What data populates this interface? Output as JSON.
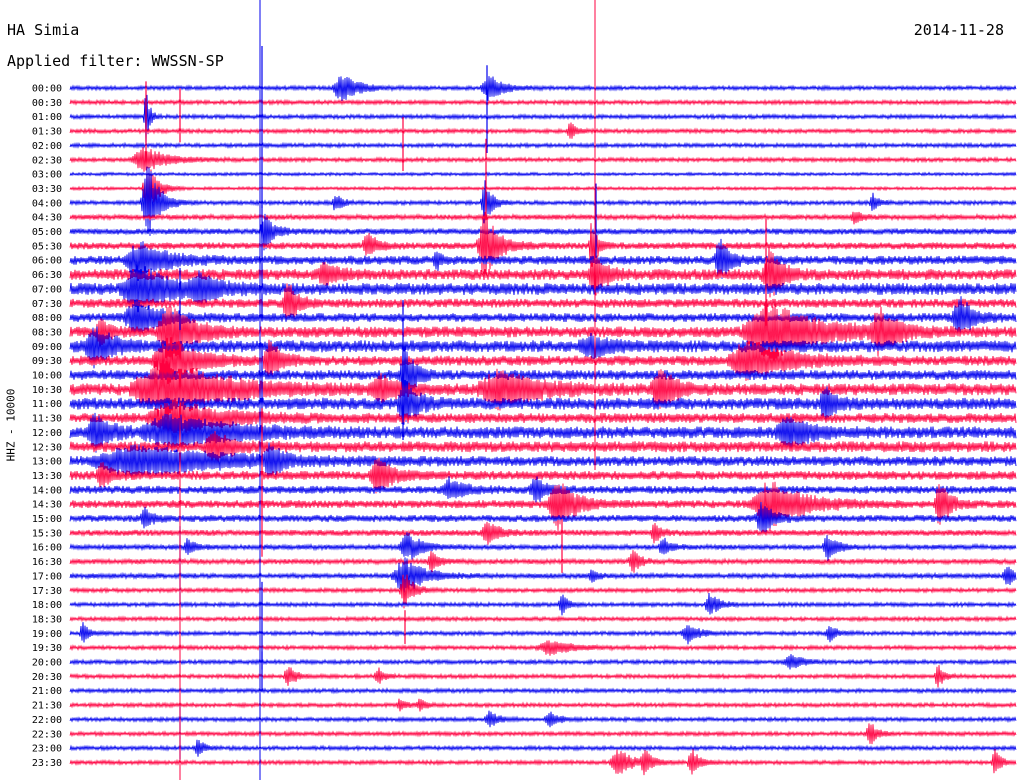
{
  "header": {
    "station": "HA Simia",
    "date": "2014-11-28",
    "filter": "Applied filter: WWSSN-SP"
  },
  "chart_data": {
    "type": "line",
    "title": "HA Simia",
    "ylabel": "HHZ - 10000",
    "trace_colors": [
      "#0000ee",
      "#ff0040"
    ],
    "rows": [
      "00:00",
      "00:30",
      "01:00",
      "01:30",
      "02:00",
      "02:30",
      "03:00",
      "03:30",
      "04:00",
      "04:30",
      "05:00",
      "05:30",
      "06:00",
      "06:30",
      "07:00",
      "07:30",
      "08:00",
      "08:30",
      "09:00",
      "09:30",
      "10:00",
      "10:30",
      "11:00",
      "11:30",
      "12:00",
      "12:30",
      "13:00",
      "13:30",
      "14:00",
      "14:30",
      "15:00",
      "15:30",
      "16:00",
      "16:30",
      "17:00",
      "17:30",
      "18:00",
      "18:30",
      "19:00",
      "19:30",
      "20:00",
      "20:30",
      "21:00",
      "21:30",
      "22:00",
      "22:30",
      "23:00",
      "23:30"
    ],
    "base_noise": [
      2,
      2,
      2,
      2,
      2,
      2,
      1.5,
      1.5,
      2,
      2.5,
      3,
      3.5,
      4.5,
      5.5,
      6,
      4.5,
      4.5,
      5.5,
      6,
      5,
      5,
      6,
      6,
      5,
      6,
      5.5,
      5,
      4.5,
      4,
      4,
      3.5,
      3,
      2.5,
      2.5,
      2.5,
      2,
      2,
      2,
      2,
      2,
      2,
      2,
      2,
      2,
      2,
      2,
      2,
      2
    ],
    "events": [
      {
        "row": 0,
        "x": 342,
        "w": 18,
        "amp": 14
      },
      {
        "row": 0,
        "x": 489,
        "w": 14,
        "amp": 14
      },
      {
        "row": 2,
        "x": 146,
        "w": 4,
        "amp": 30
      },
      {
        "row": 3,
        "x": 570,
        "w": 6,
        "amp": 10
      },
      {
        "row": 5,
        "x": 145,
        "w": 25,
        "amp": 12
      },
      {
        "row": 7,
        "x": 148,
        "w": 10,
        "amp": 28
      },
      {
        "row": 8,
        "x": 148,
        "w": 12,
        "amp": 40
      },
      {
        "row": 8,
        "x": 336,
        "w": 8,
        "amp": 8
      },
      {
        "row": 8,
        "x": 485,
        "w": 8,
        "amp": 22
      },
      {
        "row": 8,
        "x": 873,
        "w": 6,
        "amp": 10
      },
      {
        "row": 9,
        "x": 855,
        "w": 8,
        "amp": 6
      },
      {
        "row": 10,
        "x": 265,
        "w": 10,
        "amp": 18
      },
      {
        "row": 11,
        "x": 485,
        "w": 14,
        "amp": 35
      },
      {
        "row": 11,
        "x": 368,
        "w": 10,
        "amp": 12
      },
      {
        "row": 11,
        "x": 592,
        "w": 6,
        "amp": 25
      },
      {
        "row": 12,
        "x": 140,
        "w": 28,
        "amp": 18
      },
      {
        "row": 12,
        "x": 720,
        "w": 10,
        "amp": 22
      },
      {
        "row": 12,
        "x": 437,
        "w": 6,
        "amp": 8
      },
      {
        "row": 13,
        "x": 325,
        "w": 14,
        "amp": 10
      },
      {
        "row": 13,
        "x": 595,
        "w": 12,
        "amp": 20
      },
      {
        "row": 13,
        "x": 770,
        "w": 14,
        "amp": 25
      },
      {
        "row": 14,
        "x": 140,
        "w": 34,
        "amp": 22
      },
      {
        "row": 14,
        "x": 200,
        "w": 20,
        "amp": 12
      },
      {
        "row": 15,
        "x": 288,
        "w": 10,
        "amp": 22
      },
      {
        "row": 16,
        "x": 138,
        "w": 26,
        "amp": 16
      },
      {
        "row": 16,
        "x": 960,
        "w": 14,
        "amp": 20
      },
      {
        "row": 17,
        "x": 170,
        "w": 22,
        "amp": 30
      },
      {
        "row": 17,
        "x": 770,
        "w": 48,
        "amp": 30
      },
      {
        "row": 17,
        "x": 880,
        "w": 18,
        "amp": 22
      },
      {
        "row": 17,
        "x": 100,
        "w": 8,
        "amp": 14
      },
      {
        "row": 18,
        "x": 95,
        "w": 20,
        "amp": 18
      },
      {
        "row": 18,
        "x": 590,
        "w": 20,
        "amp": 10
      },
      {
        "row": 19,
        "x": 170,
        "w": 30,
        "amp": 22
      },
      {
        "row": 19,
        "x": 270,
        "w": 12,
        "amp": 20
      },
      {
        "row": 19,
        "x": 750,
        "w": 40,
        "amp": 20
      },
      {
        "row": 20,
        "x": 405,
        "w": 10,
        "amp": 30
      },
      {
        "row": 21,
        "x": 165,
        "w": 60,
        "amp": 28
      },
      {
        "row": 21,
        "x": 500,
        "w": 40,
        "amp": 18
      },
      {
        "row": 21,
        "x": 660,
        "w": 16,
        "amp": 22
      },
      {
        "row": 21,
        "x": 380,
        "w": 18,
        "amp": 12
      },
      {
        "row": 22,
        "x": 405,
        "w": 14,
        "amp": 20
      },
      {
        "row": 22,
        "x": 825,
        "w": 10,
        "amp": 18
      },
      {
        "row": 23,
        "x": 175,
        "w": 50,
        "amp": 16
      },
      {
        "row": 24,
        "x": 95,
        "w": 16,
        "amp": 18
      },
      {
        "row": 24,
        "x": 175,
        "w": 60,
        "amp": 16
      },
      {
        "row": 24,
        "x": 790,
        "w": 26,
        "amp": 14
      },
      {
        "row": 25,
        "x": 215,
        "w": 20,
        "amp": 12
      },
      {
        "row": 26,
        "x": 140,
        "w": 90,
        "amp": 14
      },
      {
        "row": 26,
        "x": 270,
        "w": 12,
        "amp": 14
      },
      {
        "row": 27,
        "x": 102,
        "w": 10,
        "amp": 12
      },
      {
        "row": 27,
        "x": 378,
        "w": 14,
        "amp": 22
      },
      {
        "row": 28,
        "x": 450,
        "w": 16,
        "amp": 10
      },
      {
        "row": 28,
        "x": 536,
        "w": 12,
        "amp": 12
      },
      {
        "row": 29,
        "x": 558,
        "w": 18,
        "amp": 28
      },
      {
        "row": 29,
        "x": 770,
        "w": 34,
        "amp": 24
      },
      {
        "row": 29,
        "x": 940,
        "w": 10,
        "amp": 24
      },
      {
        "row": 30,
        "x": 145,
        "w": 8,
        "amp": 10
      },
      {
        "row": 30,
        "x": 762,
        "w": 12,
        "amp": 16
      },
      {
        "row": 31,
        "x": 488,
        "w": 12,
        "amp": 12
      },
      {
        "row": 31,
        "x": 655,
        "w": 8,
        "amp": 9
      },
      {
        "row": 32,
        "x": 188,
        "w": 8,
        "amp": 8
      },
      {
        "row": 32,
        "x": 408,
        "w": 16,
        "amp": 14
      },
      {
        "row": 32,
        "x": 663,
        "w": 8,
        "amp": 10
      },
      {
        "row": 32,
        "x": 828,
        "w": 10,
        "amp": 12
      },
      {
        "row": 33,
        "x": 432,
        "w": 8,
        "amp": 10
      },
      {
        "row": 33,
        "x": 633,
        "w": 8,
        "amp": 12
      },
      {
        "row": 34,
        "x": 405,
        "w": 22,
        "amp": 18
      },
      {
        "row": 34,
        "x": 1007,
        "w": 8,
        "amp": 10
      },
      {
        "row": 34,
        "x": 592,
        "w": 6,
        "amp": 8
      },
      {
        "row": 35,
        "x": 405,
        "w": 10,
        "amp": 18
      },
      {
        "row": 36,
        "x": 710,
        "w": 10,
        "amp": 12
      },
      {
        "row": 36,
        "x": 562,
        "w": 6,
        "amp": 12
      },
      {
        "row": 38,
        "x": 83,
        "w": 6,
        "amp": 12
      },
      {
        "row": 38,
        "x": 688,
        "w": 12,
        "amp": 10
      },
      {
        "row": 38,
        "x": 830,
        "w": 8,
        "amp": 8
      },
      {
        "row": 39,
        "x": 550,
        "w": 24,
        "amp": 7
      },
      {
        "row": 40,
        "x": 790,
        "w": 12,
        "amp": 9
      },
      {
        "row": 41,
        "x": 288,
        "w": 8,
        "amp": 11
      },
      {
        "row": 41,
        "x": 378,
        "w": 6,
        "amp": 9
      },
      {
        "row": 41,
        "x": 938,
        "w": 6,
        "amp": 12
      },
      {
        "row": 43,
        "x": 400,
        "w": 6,
        "amp": 7
      },
      {
        "row": 43,
        "x": 420,
        "w": 6,
        "amp": 7
      },
      {
        "row": 44,
        "x": 490,
        "w": 10,
        "amp": 8
      },
      {
        "row": 44,
        "x": 550,
        "w": 10,
        "amp": 8
      },
      {
        "row": 45,
        "x": 870,
        "w": 8,
        "amp": 12
      },
      {
        "row": 46,
        "x": 198,
        "w": 6,
        "amp": 10
      },
      {
        "row": 47,
        "x": 618,
        "w": 14,
        "amp": 16
      },
      {
        "row": 47,
        "x": 645,
        "w": 8,
        "amp": 12
      },
      {
        "row": 47,
        "x": 692,
        "w": 8,
        "amp": 14
      },
      {
        "row": 47,
        "x": 995,
        "w": 6,
        "amp": 14
      }
    ],
    "spikes": [
      {
        "row": 0,
        "x": 262,
        "amp": 120
      },
      {
        "row": 0,
        "x": 487,
        "amp": 65
      },
      {
        "row": 1,
        "x": 146,
        "amp": 60
      },
      {
        "row": 1,
        "x": 180,
        "amp": 40
      },
      {
        "row": 3,
        "x": 403,
        "amp": 40
      },
      {
        "row": 5,
        "x": 486,
        "amp": 60
      },
      {
        "row": 8,
        "x": 596,
        "amp": 55
      },
      {
        "row": 10,
        "x": 262,
        "amp": 90
      },
      {
        "row": 11,
        "x": 766,
        "amp": 80
      },
      {
        "row": 14,
        "x": 180,
        "amp": 60
      },
      {
        "row": 16,
        "x": 403,
        "amp": 50
      },
      {
        "row": 20,
        "x": 262,
        "amp": 90
      },
      {
        "row": 20,
        "x": 403,
        "amp": 65
      },
      {
        "row": 25,
        "x": 262,
        "amp": 110
      },
      {
        "row": 31,
        "x": 562,
        "amp": 40
      },
      {
        "row": 32,
        "x": 180,
        "amp": 60
      },
      {
        "row": 36,
        "x": 262,
        "amp": 65
      },
      {
        "row": 37,
        "x": 405,
        "amp": 25
      },
      {
        "row": 40,
        "x": 262,
        "amp": 30
      },
      {
        "row": 44,
        "x": 180,
        "amp": 40
      }
    ]
  }
}
